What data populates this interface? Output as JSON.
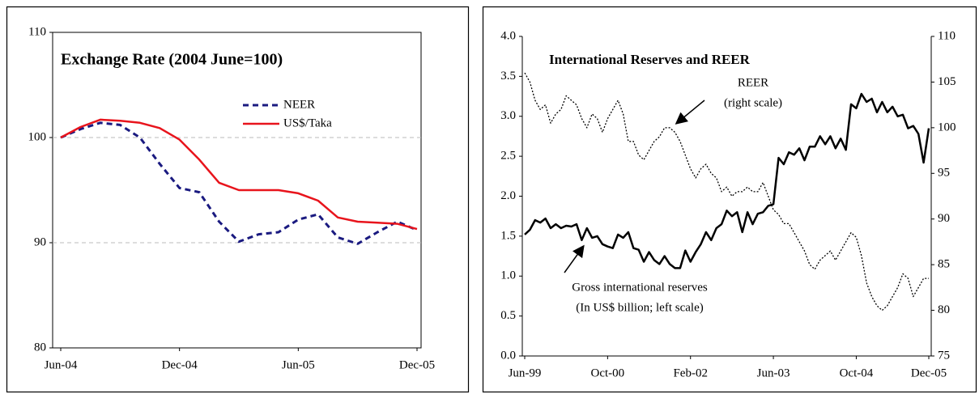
{
  "chart_data": [
    {
      "type": "line",
      "title": "Exchange Rate (2004 June=100)",
      "categories": [
        "Jun-04",
        null,
        null,
        null,
        null,
        null,
        "Dec-04",
        null,
        null,
        null,
        null,
        null,
        "Jun-05",
        null,
        null,
        null,
        null,
        null,
        "Dec-05"
      ],
      "series": [
        {
          "name": "NEER",
          "color": "#1a1a80",
          "style": "dashed",
          "values": [
            100,
            100.8,
            101.4,
            101.2,
            100,
            97.5,
            95.2,
            94.8,
            92,
            90.1,
            90.8,
            91,
            92.2,
            92.7,
            90.5,
            89.9,
            91,
            92,
            91.2
          ]
        },
        {
          "name": "US$/Taka",
          "color": "#e8141c",
          "style": "solid",
          "values": [
            100,
            101,
            101.7,
            101.6,
            101.4,
            100.9,
            99.8,
            97.9,
            95.7,
            95,
            95,
            95,
            94.7,
            94,
            92.4,
            92,
            91.9,
            91.8,
            91.3
          ]
        }
      ],
      "ylim": [
        80,
        110
      ],
      "yticks": [
        80,
        90,
        100,
        110
      ],
      "grid": true
    },
    {
      "type": "line",
      "title": "International Reserves and REER",
      "categories": [
        "Jun-99",
        null,
        null,
        null,
        null,
        null,
        null,
        null,
        null,
        null,
        null,
        null,
        null,
        null,
        null,
        null,
        "Oct-00",
        null,
        null,
        null,
        null,
        null,
        null,
        null,
        null,
        null,
        null,
        null,
        null,
        null,
        null,
        null,
        "Feb-02",
        null,
        null,
        null,
        null,
        null,
        null,
        null,
        null,
        null,
        null,
        null,
        null,
        null,
        null,
        null,
        "Jun-03",
        null,
        null,
        null,
        null,
        null,
        null,
        null,
        null,
        null,
        null,
        null,
        null,
        null,
        null,
        null,
        "Oct-04",
        null,
        null,
        null,
        null,
        null,
        null,
        null,
        null,
        null,
        null,
        null,
        null,
        null,
        "Dec-05"
      ],
      "series": [
        {
          "color": "#000000",
          "style": "solid",
          "values": [
            1.52,
            1.58,
            1.7,
            1.67,
            1.72,
            1.6,
            1.65,
            1.6,
            1.63,
            1.62,
            1.65,
            1.45,
            1.6,
            1.48,
            1.5,
            1.4,
            1.37,
            1.35,
            1.52,
            1.48,
            1.55,
            1.35,
            1.33,
            1.18,
            1.3,
            1.2,
            1.15,
            1.25,
            1.15,
            1.1,
            1.1,
            1.32,
            1.18,
            1.3,
            1.4,
            1.55,
            1.45,
            1.6,
            1.65,
            1.82,
            1.75,
            1.8,
            1.55,
            1.8,
            1.65,
            1.78,
            1.8,
            1.88,
            1.9,
            2.48,
            2.4,
            2.55,
            2.52,
            2.6,
            2.45,
            2.62,
            2.62,
            2.75,
            2.65,
            2.75,
            2.6,
            2.72,
            2.58,
            3.15,
            3.1,
            3.28,
            3.18,
            3.22,
            3.05,
            3.18,
            3.05,
            3.12,
            3.0,
            3.02,
            2.85,
            2.88,
            2.78,
            2.42,
            2.85
          ]
        },
        {
          "color": "#000000",
          "style": "dotted",
          "axis": "y2",
          "values": [
            106,
            105,
            103,
            102,
            102.5,
            100.5,
            101.5,
            102,
            103.5,
            103,
            102.5,
            101,
            100,
            101.5,
            101,
            99.5,
            101,
            102,
            103,
            101.5,
            98.5,
            98.5,
            97,
            96.5,
            97.5,
            98.5,
            99,
            100,
            100,
            99.5,
            98.5,
            97,
            95.5,
            94.5,
            95.5,
            96,
            95,
            94.5,
            93,
            93.5,
            92.5,
            93,
            93,
            93.5,
            93,
            93,
            94,
            92.5,
            91,
            90.5,
            89.5,
            89.5,
            88.5,
            87.5,
            86.5,
            85,
            84.5,
            85.5,
            86,
            86.5,
            85.5,
            86.5,
            87.5,
            88.5,
            88,
            86,
            83,
            81.5,
            80.5,
            80,
            80.5,
            81.5,
            82.5,
            84,
            83.5,
            81.5,
            82.5,
            83.5,
            83.5
          ]
        }
      ],
      "annotations": [
        [
          "REER",
          "(right scale)"
        ],
        [
          "Gross international reserves",
          "(In US$ billion; left scale)"
        ]
      ],
      "ylim": [
        0,
        4
      ],
      "yticks": [
        {
          "value": 0,
          "label": "0.0"
        },
        0.5,
        {
          "value": 1,
          "label": "1.0"
        },
        1.5,
        {
          "value": 2,
          "label": "2.0"
        },
        2.5,
        {
          "value": 3,
          "label": "3.0"
        },
        3.5,
        {
          "value": 4,
          "label": "4.0"
        }
      ],
      "y2lim": [
        75,
        110
      ],
      "y2ticks": [
        75,
        80,
        85,
        90,
        95,
        100,
        105,
        110
      ],
      "grid": false
    }
  ]
}
